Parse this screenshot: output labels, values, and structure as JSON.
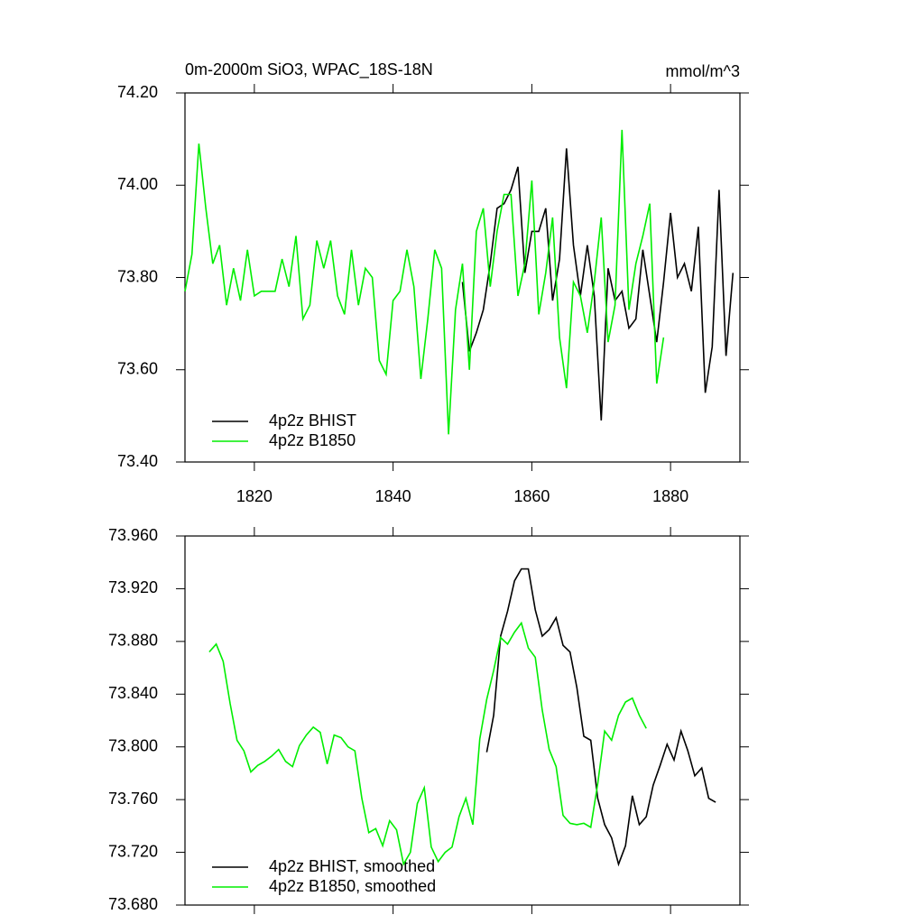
{
  "chart_data": [
    {
      "type": "line",
      "title": "0m-2000m SiO3, WPAC_18S-18N",
      "units": "mmol/m^3",
      "xlim": [
        1810,
        1890
      ],
      "ylim": [
        73.4,
        74.2
      ],
      "xticks": [
        1820,
        1840,
        1860,
        1880
      ],
      "show_xtick_labels": true,
      "yticks": [
        {
          "value": 73.4,
          "label": "73.40"
        },
        {
          "value": 73.6,
          "label": "73.60"
        },
        {
          "value": 73.8,
          "label": "73.80"
        },
        {
          "value": 74.0,
          "label": "74.00"
        },
        {
          "value": 74.2,
          "label": "74.20"
        }
      ],
      "series": [
        {
          "name": "4p2z BHIST",
          "color": "#000000",
          "x": [
            1850,
            1851,
            1852,
            1853,
            1854,
            1855,
            1856,
            1857,
            1858,
            1859,
            1860,
            1861,
            1862,
            1863,
            1864,
            1865,
            1866,
            1867,
            1868,
            1869,
            1870,
            1871,
            1872,
            1873,
            1874,
            1875,
            1876,
            1877,
            1878,
            1879,
            1880,
            1881,
            1882,
            1883,
            1884,
            1885,
            1886,
            1887,
            1888,
            1889
          ],
          "values": [
            73.79,
            73.64,
            73.68,
            73.73,
            73.83,
            73.95,
            73.96,
            73.99,
            74.04,
            73.81,
            73.9,
            73.9,
            73.95,
            73.75,
            73.84,
            74.08,
            73.87,
            73.76,
            73.87,
            73.76,
            73.49,
            73.82,
            73.75,
            73.77,
            73.69,
            73.71,
            73.86,
            73.76,
            73.66,
            73.79,
            73.94,
            73.8,
            73.83,
            73.77,
            73.91,
            73.55,
            73.65,
            73.99,
            73.63,
            73.81
          ]
        },
        {
          "name": "4p2z B1850",
          "color": "#00ee00",
          "x": [
            1810,
            1811,
            1812,
            1813,
            1814,
            1815,
            1816,
            1817,
            1818,
            1819,
            1820,
            1821,
            1822,
            1823,
            1824,
            1825,
            1826,
            1827,
            1828,
            1829,
            1830,
            1831,
            1832,
            1833,
            1834,
            1835,
            1836,
            1837,
            1838,
            1839,
            1840,
            1841,
            1842,
            1843,
            1844,
            1845,
            1846,
            1847,
            1848,
            1849,
            1850,
            1851,
            1852,
            1853,
            1854,
            1855,
            1856,
            1857,
            1858,
            1859,
            1860,
            1861,
            1862,
            1863,
            1864,
            1865,
            1866,
            1867,
            1868,
            1869,
            1870,
            1871,
            1872,
            1873,
            1874,
            1875,
            1876,
            1877,
            1878,
            1879
          ],
          "values": [
            73.77,
            73.85,
            74.09,
            73.95,
            73.83,
            73.87,
            73.74,
            73.82,
            73.75,
            73.86,
            73.76,
            73.77,
            73.77,
            73.77,
            73.84,
            73.78,
            73.89,
            73.71,
            73.74,
            73.88,
            73.82,
            73.88,
            73.76,
            73.72,
            73.86,
            73.74,
            73.82,
            73.8,
            73.62,
            73.59,
            73.75,
            73.77,
            73.86,
            73.78,
            73.58,
            73.71,
            73.86,
            73.82,
            73.46,
            73.73,
            73.83,
            73.6,
            73.9,
            73.95,
            73.78,
            73.9,
            73.98,
            73.98,
            73.76,
            73.83,
            74.01,
            73.72,
            73.81,
            73.93,
            73.67,
            73.56,
            73.79,
            73.76,
            73.68,
            73.79,
            73.93,
            73.66,
            73.74,
            74.12,
            73.73,
            73.83,
            73.89,
            73.96,
            73.57,
            73.67
          ]
        }
      ]
    },
    {
      "type": "line",
      "xlim": [
        1810,
        1890
      ],
      "ylim": [
        73.68,
        73.96
      ],
      "xticks": [
        1820,
        1840,
        1860,
        1880
      ],
      "show_xtick_labels": false,
      "yticks": [
        {
          "value": 73.68,
          "label": "73.680"
        },
        {
          "value": 73.72,
          "label": "73.720"
        },
        {
          "value": 73.76,
          "label": "73.760"
        },
        {
          "value": 73.8,
          "label": "73.800"
        },
        {
          "value": 73.84,
          "label": "73.840"
        },
        {
          "value": 73.88,
          "label": "73.880"
        },
        {
          "value": 73.92,
          "label": "73.920"
        },
        {
          "value": 73.96,
          "label": "73.960"
        }
      ],
      "series": [
        {
          "name": "4p2z BHIST, smoothed",
          "color": "#000000",
          "x": [
            1853.5,
            1854.5,
            1855.5,
            1856.5,
            1857.5,
            1858.5,
            1859.5,
            1860.5,
            1861.5,
            1862.5,
            1863.5,
            1864.5,
            1865.5,
            1866.5,
            1867.5,
            1868.5,
            1869.5,
            1870.5,
            1871.5,
            1872.5,
            1873.5,
            1874.5,
            1875.5,
            1876.5,
            1877.5,
            1878.5,
            1879.5,
            1880.5,
            1881.5,
            1882.5,
            1883.5,
            1884.5,
            1885.5,
            1886.5
          ],
          "values": [
            73.796,
            73.824,
            73.884,
            73.903,
            73.926,
            73.935,
            73.935,
            73.904,
            73.884,
            73.889,
            73.898,
            73.877,
            73.872,
            73.845,
            73.808,
            73.805,
            73.761,
            73.741,
            73.731,
            73.711,
            73.725,
            73.763,
            73.741,
            73.747,
            73.771,
            73.786,
            73.802,
            73.79,
            73.812,
            73.797,
            73.778,
            73.784,
            73.761,
            73.758
          ]
        },
        {
          "name": "4p2z B1850, smoothed",
          "color": "#00ee00",
          "x": [
            1813.5,
            1814.5,
            1815.5,
            1816.5,
            1817.5,
            1818.5,
            1819.5,
            1820.5,
            1821.5,
            1822.5,
            1823.5,
            1824.5,
            1825.5,
            1826.5,
            1827.5,
            1828.5,
            1829.5,
            1830.5,
            1831.5,
            1832.5,
            1833.5,
            1834.5,
            1835.5,
            1836.5,
            1837.5,
            1838.5,
            1839.5,
            1840.5,
            1841.5,
            1842.5,
            1843.5,
            1844.5,
            1845.5,
            1846.5,
            1847.5,
            1848.5,
            1849.5,
            1850.5,
            1851.5,
            1852.5,
            1853.5,
            1854.5,
            1855.5,
            1856.5,
            1857.5,
            1858.5,
            1859.5,
            1860.5,
            1861.5,
            1862.5,
            1863.5,
            1864.5,
            1865.5,
            1866.5,
            1867.5,
            1868.5,
            1869.5,
            1870.5,
            1871.5,
            1872.5,
            1873.5,
            1874.5,
            1875.5,
            1876.5
          ],
          "values": [
            73.872,
            73.878,
            73.865,
            73.833,
            73.805,
            73.797,
            73.781,
            73.786,
            73.789,
            73.793,
            73.798,
            73.789,
            73.785,
            73.801,
            73.809,
            73.815,
            73.811,
            73.787,
            73.809,
            73.807,
            73.8,
            73.797,
            73.761,
            73.735,
            73.738,
            73.725,
            73.744,
            73.737,
            73.711,
            73.72,
            73.757,
            73.769,
            73.724,
            73.713,
            73.72,
            73.724,
            73.747,
            73.761,
            73.741,
            73.806,
            73.836,
            73.858,
            73.883,
            73.878,
            73.887,
            73.894,
            73.875,
            73.868,
            73.828,
            73.798,
            73.785,
            73.748,
            73.742,
            73.741,
            73.742,
            73.739,
            73.772,
            73.812,
            73.805,
            73.824,
            73.834,
            73.837,
            73.824,
            73.814
          ]
        }
      ]
    }
  ]
}
